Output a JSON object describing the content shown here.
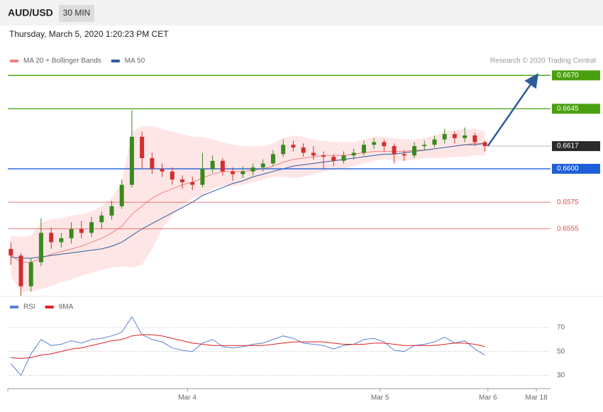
{
  "header": {
    "symbol": "AUD/USD",
    "timeframe": "30 MIN",
    "timestamp": "Thursday, March 5, 2020 1:20:23 PM CET"
  },
  "chart_data": [
    {
      "type": "candlestick",
      "source": "Research © 2020 Trading Central",
      "xlim": [
        -0.3,
        53.5
      ],
      "ylim": [
        0.6506,
        0.6676
      ],
      "colors": {
        "up": "#3a8a1e",
        "down": "#d22e2e"
      },
      "candles": [
        [
          0.654,
          0.6545,
          0.6528,
          0.6535
        ],
        [
          0.6535,
          0.6537,
          0.6505,
          0.6512
        ],
        [
          0.6512,
          0.6533,
          0.6508,
          0.653
        ],
        [
          0.653,
          0.6563,
          0.6527,
          0.6552
        ],
        [
          0.6552,
          0.6556,
          0.654,
          0.6545
        ],
        [
          0.6545,
          0.6552,
          0.6541,
          0.6548
        ],
        [
          0.6548,
          0.656,
          0.6544,
          0.6555
        ],
        [
          0.6555,
          0.6561,
          0.6548,
          0.6552
        ],
        [
          0.6552,
          0.6564,
          0.6549,
          0.656
        ],
        [
          0.656,
          0.6568,
          0.6555,
          0.6565
        ],
        [
          0.6565,
          0.6576,
          0.6562,
          0.6572
        ],
        [
          0.6572,
          0.6592,
          0.657,
          0.6588
        ],
        [
          0.6588,
          0.6644,
          0.6586,
          0.6624
        ],
        [
          0.6624,
          0.6628,
          0.66,
          0.6608
        ],
        [
          0.6608,
          0.6612,
          0.6596,
          0.66
        ],
        [
          0.66,
          0.6604,
          0.6594,
          0.6598
        ],
        [
          0.6598,
          0.6601,
          0.6588,
          0.6592
        ],
        [
          0.6592,
          0.6595,
          0.6585,
          0.659
        ],
        [
          0.659,
          0.6594,
          0.6584,
          0.6588
        ],
        [
          0.6588,
          0.6612,
          0.6586,
          0.66
        ],
        [
          0.66,
          0.661,
          0.6597,
          0.6606
        ],
        [
          0.6606,
          0.6608,
          0.6595,
          0.6598
        ],
        [
          0.6598,
          0.6601,
          0.6591,
          0.6596
        ],
        [
          0.6596,
          0.6602,
          0.6593,
          0.6598
        ],
        [
          0.6598,
          0.6604,
          0.6595,
          0.6601
        ],
        [
          0.6601,
          0.6607,
          0.6598,
          0.6604
        ],
        [
          0.6604,
          0.6614,
          0.6602,
          0.6611
        ],
        [
          0.6611,
          0.6622,
          0.6609,
          0.6618
        ],
        [
          0.6618,
          0.6621,
          0.6613,
          0.6616
        ],
        [
          0.6616,
          0.6619,
          0.6609,
          0.6612
        ],
        [
          0.6612,
          0.6617,
          0.6607,
          0.661
        ],
        [
          0.661,
          0.6613,
          0.66,
          0.6609
        ],
        [
          0.6609,
          0.6611,
          0.6602,
          0.6606
        ],
        [
          0.6606,
          0.6613,
          0.6604,
          0.661
        ],
        [
          0.661,
          0.6615,
          0.6607,
          0.6612
        ],
        [
          0.6612,
          0.6621,
          0.661,
          0.6618
        ],
        [
          0.6618,
          0.6623,
          0.6615,
          0.662
        ],
        [
          0.662,
          0.6622,
          0.6613,
          0.6617
        ],
        [
          0.6617,
          0.6619,
          0.6604,
          0.6611
        ],
        [
          0.6611,
          0.6614,
          0.6606,
          0.661
        ],
        [
          0.661,
          0.662,
          0.6608,
          0.6617
        ],
        [
          0.6617,
          0.6621,
          0.6614,
          0.6618
        ],
        [
          0.6618,
          0.6625,
          0.6616,
          0.6622
        ],
        [
          0.6622,
          0.663,
          0.6619,
          0.6626
        ],
        [
          0.6626,
          0.6628,
          0.6619,
          0.6623
        ],
        [
          0.6623,
          0.6631,
          0.662,
          0.6625
        ],
        [
          0.6625,
          0.6627,
          0.6617,
          0.662
        ],
        [
          0.662,
          0.6621,
          0.6613,
          0.6617
        ]
      ],
      "bands": {
        "color": "#ffdcdc",
        "upper": [
          0.655,
          0.6549,
          0.655,
          0.656,
          0.6562,
          0.6563,
          0.6565,
          0.6566,
          0.6568,
          0.6572,
          0.6578,
          0.659,
          0.6628,
          0.6632,
          0.6632,
          0.663,
          0.6628,
          0.6626,
          0.6624,
          0.6624,
          0.6622,
          0.662,
          0.6618,
          0.6617,
          0.6617,
          0.6617,
          0.6619,
          0.6623,
          0.6625,
          0.6624,
          0.6622,
          0.6621,
          0.662,
          0.662,
          0.662,
          0.6622,
          0.6624,
          0.6624,
          0.6623,
          0.6622,
          0.6622,
          0.6623,
          0.6625,
          0.6628,
          0.6629,
          0.663,
          0.663,
          0.6628
        ],
        "lower": [
          0.652,
          0.6508,
          0.6508,
          0.651,
          0.6512,
          0.6515,
          0.6517,
          0.652,
          0.6522,
          0.6524,
          0.6526,
          0.6527,
          0.6526,
          0.6528,
          0.654,
          0.6555,
          0.6565,
          0.6572,
          0.6578,
          0.658,
          0.6585,
          0.6587,
          0.6587,
          0.6588,
          0.659,
          0.6592,
          0.6594,
          0.6594,
          0.6593,
          0.6594,
          0.6596,
          0.6598,
          0.6599,
          0.66,
          0.6602,
          0.6604,
          0.6606,
          0.6607,
          0.6606,
          0.6606,
          0.6607,
          0.6608,
          0.6608,
          0.6608,
          0.6609,
          0.6609,
          0.661,
          0.661
        ]
      },
      "series": [
        {
          "name": "MA 20 + Bollinger Bands",
          "color": "#f08080",
          "values": [
            0.6535,
            0.653,
            0.653,
            0.6533,
            0.6536,
            0.6538,
            0.654,
            0.6542,
            0.6545,
            0.6548,
            0.6552,
            0.6557,
            0.6566,
            0.6572,
            0.6578,
            0.6582,
            0.6585,
            0.6588,
            0.659,
            0.6593,
            0.6596,
            0.6598,
            0.6598,
            0.6598,
            0.6599,
            0.66,
            0.6602,
            0.6605,
            0.6607,
            0.6608,
            0.6609,
            0.661,
            0.661,
            0.661,
            0.6611,
            0.6612,
            0.6613,
            0.6613,
            0.6613,
            0.6613,
            0.6614,
            0.6614,
            0.6615,
            0.6616,
            0.6617,
            0.6618,
            0.6619,
            0.6619
          ]
        },
        {
          "name": "MA 50",
          "color": "#2e5b9a",
          "values": [
            0.6534,
            0.6533,
            0.6533,
            0.6534,
            0.6535,
            0.6536,
            0.6537,
            0.6538,
            0.6539,
            0.654,
            0.6542,
            0.6545,
            0.655,
            0.6555,
            0.6559,
            0.6563,
            0.6567,
            0.6571,
            0.6575,
            0.658,
            0.6583,
            0.6586,
            0.6589,
            0.6591,
            0.6594,
            0.6596,
            0.6598,
            0.66,
            0.6602,
            0.6603,
            0.6604,
            0.6605,
            0.6606,
            0.6607,
            0.6608,
            0.6609,
            0.661,
            0.6611,
            0.6611,
            0.6612,
            0.6613,
            0.6614,
            0.6615,
            0.6616,
            0.6617,
            0.6618,
            0.6618,
            0.6619
          ]
        }
      ],
      "levels": [
        {
          "value": 0.667,
          "label": "0.6670",
          "color": "#4aa00f",
          "boxed": true
        },
        {
          "value": 0.6645,
          "label": "0.6645",
          "color": "#4aa00f",
          "boxed": true
        },
        {
          "value": 0.6617,
          "label": "0.6617",
          "color": "#2b2b2b",
          "boxed": true,
          "current": true
        },
        {
          "value": 0.66,
          "label": "0.6600",
          "color": "#1f5fd6",
          "boxed": true
        },
        {
          "value": 0.6575,
          "label": "0.6575",
          "color": "#e05050",
          "boxed": false
        },
        {
          "value": 0.6555,
          "label": "0.6555",
          "color": "#e05050",
          "boxed": false
        }
      ]
    },
    {
      "type": "line",
      "xlim": [
        -0.3,
        53.5
      ],
      "ylim": [
        19,
        80
      ],
      "yticks": [
        30,
        50,
        70
      ],
      "grid": true,
      "xticks": [
        {
          "value": 17.5,
          "label": "Mar 4"
        },
        {
          "value": 36.6,
          "label": "Mar 5"
        },
        {
          "value": 47.3,
          "label": "Mar 6"
        },
        {
          "value": 52.1,
          "label": "Mar 18"
        }
      ],
      "series": [
        {
          "name": "RSI",
          "color": "#5b7fd6",
          "values": [
            40,
            30,
            48,
            60,
            55,
            56,
            59,
            57,
            60,
            61,
            63,
            66,
            79,
            64,
            60,
            58,
            53,
            51,
            50,
            57,
            60,
            54,
            53,
            54,
            56,
            57,
            60,
            63,
            61,
            57,
            56,
            55,
            52,
            55,
            56,
            60,
            61,
            58,
            51,
            50,
            55,
            56,
            58,
            62,
            57,
            59,
            52,
            47
          ]
        },
        {
          "name": "9MA",
          "color": "#e02020",
          "values": [
            45,
            44,
            45,
            47,
            48,
            50,
            52,
            53,
            55,
            57,
            59,
            60,
            63,
            64,
            64,
            63,
            61,
            59,
            57,
            56,
            55,
            55,
            55,
            55,
            55,
            55,
            56,
            57,
            58,
            58,
            58,
            58,
            57,
            56,
            56,
            56,
            57,
            57,
            56,
            55,
            55,
            55,
            55,
            56,
            57,
            57,
            56,
            54
          ]
        }
      ]
    }
  ]
}
